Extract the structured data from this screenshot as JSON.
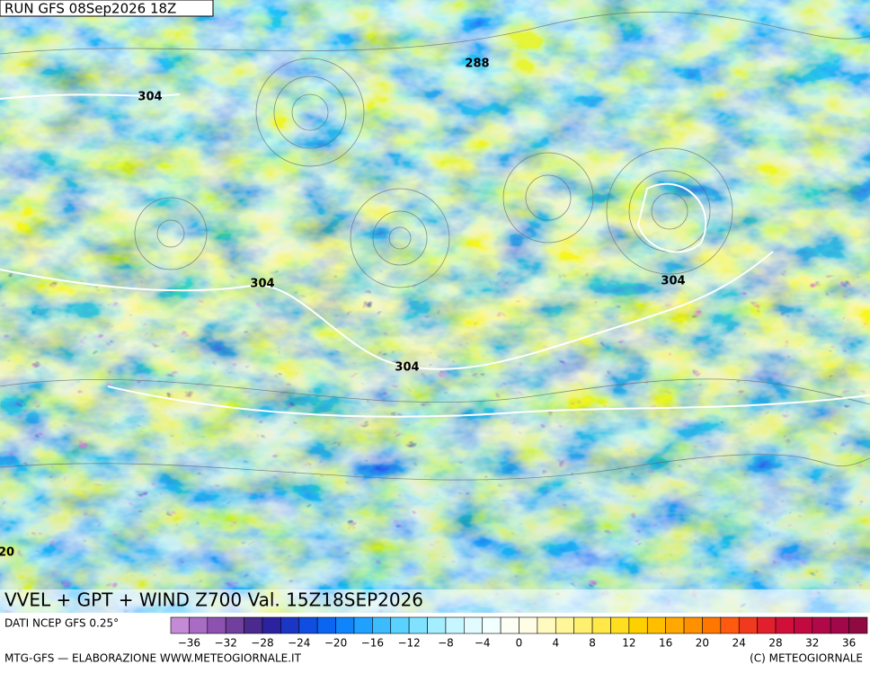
{
  "header": {
    "run": "RUN GFS 08Sep2026 18Z"
  },
  "map": {
    "contour_labels": [
      "304",
      "288",
      "304",
      "304",
      "304",
      "20"
    ]
  },
  "product_title": "VVEL + GPT + WIND Z700 Val. 15Z18SEP2026",
  "source": "DATI NCEP GFS 0.25°",
  "colorbar": {
    "ticks": [
      "−36",
      "−32",
      "−28",
      "−24",
      "−20",
      "−16",
      "−12",
      "−8",
      "−4",
      "0",
      "4",
      "8",
      "12",
      "16",
      "20",
      "24",
      "28",
      "32",
      "36"
    ],
    "colors": [
      "#c58ad6",
      "#a86cc4",
      "#8d52b0",
      "#70409c",
      "#4a2a8c",
      "#2b22a0",
      "#1c36c4",
      "#0f4ee0",
      "#0a66f0",
      "#1084fa",
      "#20a0ff",
      "#3cbcff",
      "#5ad2ff",
      "#80e2ff",
      "#a4eeff",
      "#c6f6ff",
      "#e2fbff",
      "#f2ffff",
      "#fbfff4",
      "#fffde6",
      "#fffac0",
      "#fff69a",
      "#fff070",
      "#ffe848",
      "#ffde20",
      "#ffd000",
      "#ffbe00",
      "#ffa800",
      "#ff9000",
      "#ff7600",
      "#ff5a10",
      "#f03a1e",
      "#e0202c",
      "#d01038",
      "#c00a40",
      "#b00848",
      "#a0084a",
      "#8e0a40"
    ]
  },
  "footer": {
    "left": "MTG-GFS — ELABORAZIONE WWW.METEOGIORNALE.IT",
    "right": "(C) METEOGIORNALE"
  }
}
